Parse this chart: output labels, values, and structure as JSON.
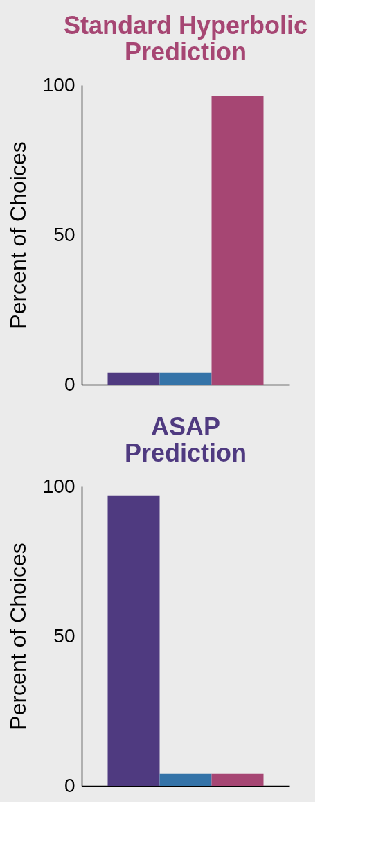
{
  "chart_data": [
    {
      "type": "bar",
      "title": "Standard Hyperbolic Prediction",
      "ylabel": "Percent of Choices",
      "categories": [
        null,
        null,
        null
      ],
      "values": [
        4,
        4,
        96.5
      ],
      "colors": [
        "#4f3a80",
        "#3473a8",
        "#a64673"
      ],
      "ylim": [
        0,
        100
      ],
      "yticks": [
        0,
        50,
        100
      ],
      "tick_labels": "y",
      "grid": false,
      "legend": false
    },
    {
      "type": "bar",
      "title": "ASAP Prediction",
      "ylabel": "Percent of Choices",
      "categories": [
        null,
        null,
        null
      ],
      "values": [
        96.8,
        4,
        4
      ],
      "colors": [
        "#4f3a80",
        "#3473a8",
        "#a64673"
      ],
      "ylim": [
        0,
        100
      ],
      "yticks": [
        0,
        50,
        100
      ],
      "tick_labels": "y",
      "grid": false,
      "legend": false
    }
  ]
}
